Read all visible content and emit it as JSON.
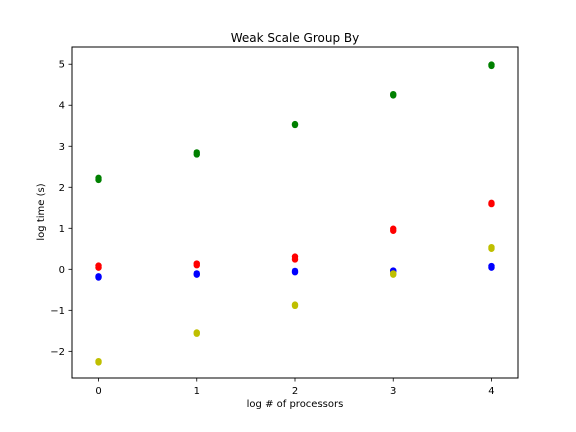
{
  "chart_data": {
    "type": "scatter",
    "title": "Weak Scale Group By",
    "xlabel": "log # of processors",
    "ylabel": "log time (s)",
    "xlim": [
      -0.27,
      4.27
    ],
    "ylim": [
      -2.65,
      5.42
    ],
    "xticks": [
      0,
      1,
      2,
      3,
      4
    ],
    "xtick_labels": [
      "0",
      "1",
      "2",
      "3",
      "4"
    ],
    "yticks": [
      -2,
      -1,
      0,
      1,
      2,
      3,
      4,
      5
    ],
    "ytick_labels": [
      "−2",
      "−1",
      "0",
      "1",
      "2",
      "3",
      "4",
      "5"
    ],
    "grid": false,
    "series": [
      {
        "color": "#008000",
        "points": [
          [
            0,
            2.18
          ],
          [
            0,
            2.23
          ],
          [
            1,
            2.8
          ],
          [
            1,
            2.85
          ],
          [
            2,
            3.52
          ],
          [
            2,
            3.54
          ],
          [
            3,
            4.24
          ],
          [
            3,
            4.27
          ],
          [
            4,
            4.96
          ],
          [
            4,
            4.99
          ]
        ]
      },
      {
        "color": "#ff0000",
        "points": [
          [
            0,
            0.04
          ],
          [
            0,
            0.09
          ],
          [
            1,
            0.1
          ],
          [
            1,
            0.14
          ],
          [
            2,
            0.24
          ],
          [
            2,
            0.31
          ],
          [
            3,
            0.94
          ],
          [
            3,
            0.99
          ],
          [
            4,
            1.59
          ],
          [
            4,
            1.62
          ]
        ]
      },
      {
        "color": "#0000ff",
        "points": [
          [
            0,
            -0.2
          ],
          [
            0,
            -0.17
          ],
          [
            1,
            -0.13
          ],
          [
            1,
            -0.1
          ],
          [
            2,
            -0.07
          ],
          [
            2,
            -0.04
          ],
          [
            3,
            -0.05
          ],
          [
            3,
            -0.03
          ],
          [
            4,
            0.04
          ],
          [
            4,
            0.08
          ]
        ]
      },
      {
        "color": "#bfbf00",
        "points": [
          [
            0,
            -2.27
          ],
          [
            0,
            -2.24
          ],
          [
            1,
            -1.57
          ],
          [
            1,
            -1.54
          ],
          [
            2,
            -0.89
          ],
          [
            2,
            -0.86
          ],
          [
            3,
            -0.13
          ],
          [
            3,
            -0.1
          ],
          [
            4,
            0.5
          ],
          [
            4,
            0.54
          ]
        ]
      }
    ]
  }
}
